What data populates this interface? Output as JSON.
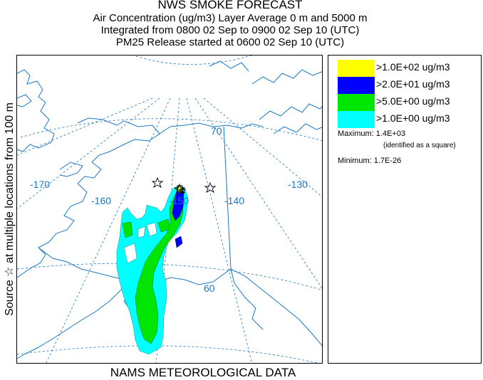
{
  "header": {
    "title": "NWS SMOKE FORECAST",
    "line2": "Air Concentration (ug/m3) Layer Average    0 m and  5000 m",
    "line3": "Integrated from 0800 02 Sep to 0900 02 Sep 10 (UTC)",
    "line4": "PM25 Release started at 0600 02 Sep 10 (UTC)"
  },
  "side_label": "Source ☆ at multiple locations  from  100 m",
  "footer": "NAMS METEOROLOGICAL DATA",
  "map": {
    "longitude_labels": [
      "-170",
      "-160",
      "-150",
      "-140",
      "-130"
    ],
    "latitude_labels": [
      "70",
      "60"
    ],
    "source_marker": "☆"
  },
  "legend": {
    "items": [
      {
        "label": ">1.0E+02 ug/m3",
        "color": "#ffff00"
      },
      {
        "label": ">2.0E+01 ug/m3",
        "color": "#0000ff"
      },
      {
        "label": ">5.0E+00 ug/m3",
        "color": "#00e600"
      },
      {
        "label": ">1.0E+00 ug/m3",
        "color": "#00ffff"
      }
    ],
    "maximum": "Maximum: 1.4E+03",
    "maximum_note": "(identified as a square)",
    "minimum": "Minimum: 1.7E-26"
  },
  "colors": {
    "coastline": "#1a78c2",
    "graticule": "#1a78c2",
    "label": "#1a78c2"
  }
}
